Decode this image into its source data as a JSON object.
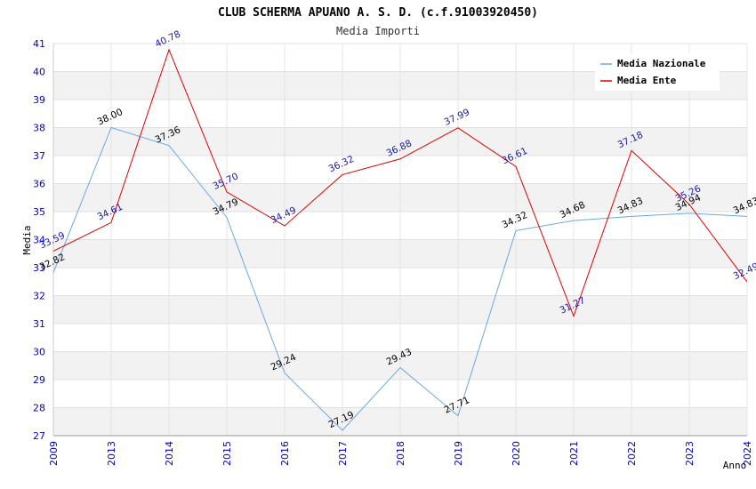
{
  "chart_data": {
    "type": "line",
    "title": "CLUB SCHERMA APUANO A. S. D. (c.f.91003920450)",
    "subtitle": "Media Importi",
    "xlabel": "Anno",
    "ylabel": "Media",
    "ylim": [
      27,
      41
    ],
    "yticks": [
      "27",
      "28",
      "29",
      "30",
      "31",
      "32",
      "33",
      "34",
      "35",
      "36",
      "37",
      "38",
      "39",
      "40",
      "41"
    ],
    "categories": [
      "2009",
      "2013",
      "2014",
      "2015",
      "2016",
      "2017",
      "2018",
      "2019",
      "2020",
      "2021",
      "2022",
      "2023",
      "2024"
    ],
    "legend_position": "top-right",
    "grid": true,
    "series": [
      {
        "name": "Media Nazionale",
        "color": "#6aa8e0",
        "label_color": "#000000",
        "values": [
          32.82,
          38.0,
          37.36,
          34.79,
          29.24,
          27.19,
          29.43,
          27.71,
          34.32,
          34.68,
          34.83,
          34.94,
          34.83
        ],
        "labels": [
          "32.82",
          "38.00",
          "37.36",
          "34.79",
          "29.24",
          "27.19",
          "29.43",
          "27.71",
          "34.32",
          "34.68",
          "34.83",
          "34.94",
          "34.83"
        ]
      },
      {
        "name": "Media Ente",
        "color": "#dd0000",
        "label_color": "#1a1aa6",
        "values": [
          33.59,
          34.61,
          40.78,
          35.7,
          34.49,
          36.32,
          36.88,
          37.99,
          36.61,
          31.27,
          37.18,
          35.26,
          32.49
        ],
        "labels": [
          "33.59",
          "34.61",
          "40.78",
          "35.70",
          "34.49",
          "36.32",
          "36.88",
          "37.99",
          "36.61",
          "31.27",
          "37.18",
          "35.26",
          "32.49"
        ]
      }
    ]
  }
}
